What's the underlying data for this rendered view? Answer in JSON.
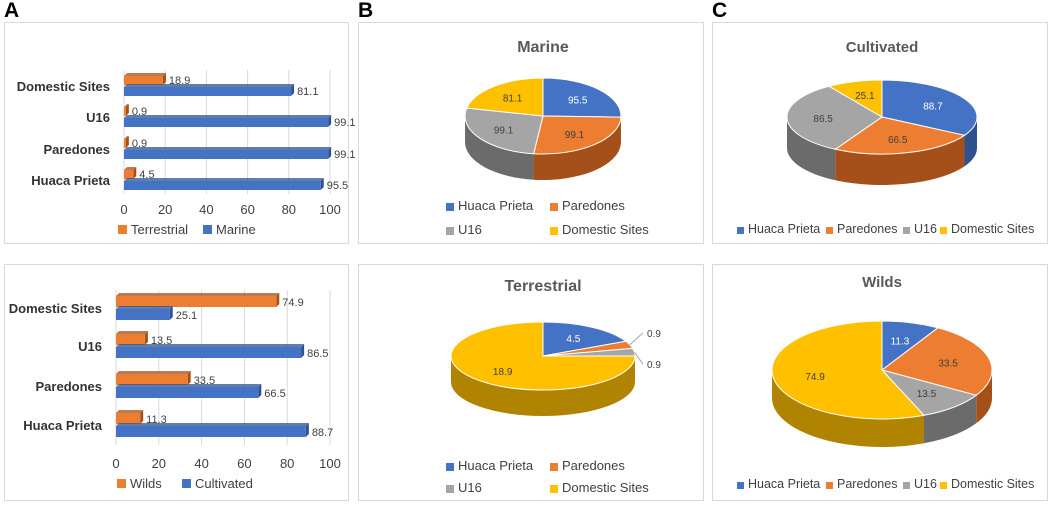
{
  "panel_labels": [
    "A",
    "B",
    "C"
  ],
  "colors": {
    "blue": "#4472C4",
    "blue_dark": "#2F528F",
    "orange": "#ED7D31",
    "orange_dark": "#A5501A",
    "gray": "#A5A5A5",
    "gray_dark": "#6B6B6B",
    "gold": "#FFC000",
    "gold_dark": "#B08400"
  },
  "chart_data": [
    {
      "id": "bar-marine-terrestrial",
      "type": "bar",
      "orientation": "horizontal",
      "categories": [
        "Domestic Sites",
        "U16",
        "Paredones",
        "Huaca Prieta"
      ],
      "series": [
        {
          "name": "Terrestrial",
          "color": "#ED7D31",
          "values": [
            18.9,
            0.9,
            0.9,
            4.5
          ]
        },
        {
          "name": "Marine",
          "color": "#4472C4",
          "values": [
            81.1,
            99.1,
            99.1,
            95.5
          ]
        }
      ],
      "xlim": [
        0,
        100
      ],
      "xticks": [
        "0",
        "20",
        "40",
        "60",
        "80",
        "100"
      ],
      "value_labels": {
        "Terrestrial": [
          "18.9",
          "0.9",
          "0.9",
          "4.5"
        ],
        "Marine": [
          "81.1",
          "99.1",
          "99.1",
          "95.5"
        ]
      },
      "legend": [
        "Terrestrial",
        "Marine"
      ]
    },
    {
      "id": "bar-cultivated-wilds",
      "type": "bar",
      "orientation": "horizontal",
      "categories": [
        "Domestic Sites",
        "U16",
        "Paredones",
        "Huaca Prieta"
      ],
      "series": [
        {
          "name": "Wilds",
          "color": "#ED7D31",
          "values": [
            74.9,
            13.5,
            33.5,
            11.3
          ]
        },
        {
          "name": "Cultivated",
          "color": "#4472C4",
          "values": [
            25.1,
            86.5,
            66.5,
            88.7
          ]
        }
      ],
      "xlim": [
        0,
        100
      ],
      "xticks": [
        "0",
        "20",
        "40",
        "60",
        "80",
        "100"
      ],
      "value_labels": {
        "Wilds": [
          "74.9",
          "13.5",
          "33.5",
          "11.3"
        ],
        "Cultivated": [
          "25.1",
          "86.5",
          "66.5",
          "88.7"
        ]
      },
      "legend": [
        "Wilds",
        "Cultivated"
      ]
    },
    {
      "id": "pie-marine",
      "type": "pie",
      "title": "Marine",
      "labels": [
        "Huaca Prieta",
        "Paredones",
        "U16",
        "Domestic Sites"
      ],
      "values": [
        95.5,
        99.1,
        99.1,
        81.1
      ],
      "value_labels": [
        "95.5",
        "99.1",
        "99.1",
        "81.1"
      ],
      "legend": [
        "Huaca Prieta",
        "Paredones",
        "U16",
        "Domestic Sites"
      ]
    },
    {
      "id": "pie-terrestrial",
      "type": "pie",
      "title": "Terrestrial",
      "labels": [
        "Huaca Prieta",
        "Paredones",
        "U16",
        "Domestic Sites"
      ],
      "values": [
        4.5,
        0.9,
        0.9,
        18.9
      ],
      "value_labels": [
        "4.5",
        "0.9",
        "0.9",
        "18.9"
      ],
      "legend": [
        "Huaca Prieta",
        "Paredones",
        "U16",
        "Domestic Sites"
      ]
    },
    {
      "id": "pie-cultivated",
      "type": "pie",
      "title": "Cultivated",
      "labels": [
        "Huaca Prieta",
        "Paredones",
        "U16",
        "Domestic Sites"
      ],
      "values": [
        88.7,
        66.5,
        86.5,
        25.1
      ],
      "value_labels": [
        "88.7",
        "66.5",
        "86.5",
        "25.1"
      ],
      "legend": [
        "Huaca Prieta",
        "Paredones",
        "U16",
        "Domestic Sites"
      ]
    },
    {
      "id": "pie-wilds",
      "type": "pie",
      "title": "Wilds",
      "labels": [
        "Huaca Prieta",
        "Paredones",
        "U16",
        "Domestic Sites"
      ],
      "values": [
        11.3,
        33.5,
        13.5,
        74.9
      ],
      "value_labels": [
        "11.3",
        "33.5",
        "13.5",
        "74.9"
      ],
      "legend": [
        "Huaca Prieta",
        "Paredones",
        "U16",
        "Domestic Sites"
      ]
    }
  ]
}
